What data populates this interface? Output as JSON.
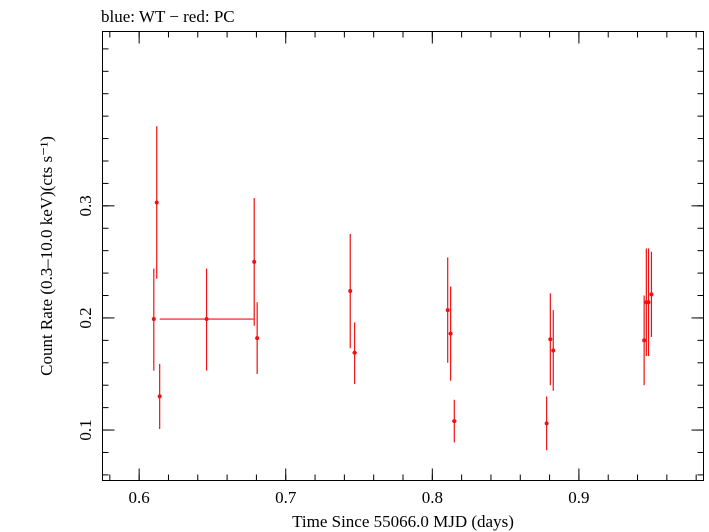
{
  "chart_data": {
    "type": "scatter",
    "title": "blue: WT − red: PC",
    "xlabel": "Time Since 55066.0 MJD (days)",
    "ylabel": "Count Rate (0.3–10.0 keV)(cts s⁻¹)",
    "xlim": [
      0.575,
      0.985
    ],
    "ylim": [
      0.055,
      0.4555
    ],
    "x_ticks": [
      {
        "value": 0.6,
        "label": "0.6"
      },
      {
        "value": 0.7,
        "label": "0.7"
      },
      {
        "value": 0.8,
        "label": "0.8"
      },
      {
        "value": 0.9,
        "label": "0.9"
      }
    ],
    "y_ticks": [
      {
        "value": 0.1,
        "label": "0.1"
      },
      {
        "value": 0.2,
        "label": "0.2"
      },
      {
        "value": 0.3,
        "label": "0.3"
      }
    ],
    "x_minor_step": 0.02,
    "y_minor_step": 0.02,
    "series": [
      {
        "color": "#ee1111",
        "points": [
          {
            "x": 0.61,
            "y": 0.199,
            "xerr": 0.0,
            "ylo": 0.153,
            "yhi": 0.244
          },
          {
            "x": 0.612,
            "y": 0.303,
            "xerr": 0.0,
            "ylo": 0.235,
            "yhi": 0.371
          },
          {
            "x": 0.614,
            "y": 0.13,
            "xerr": 0.001,
            "ylo": 0.101,
            "yhi": 0.159
          },
          {
            "x": 0.646,
            "y": 0.199,
            "xerr": 0.032,
            "ylo": 0.153,
            "yhi": 0.244
          },
          {
            "x": 0.6785,
            "y": 0.25,
            "xerr": 0.0,
            "ylo": 0.193,
            "yhi": 0.307
          },
          {
            "x": 0.6805,
            "y": 0.182,
            "xerr": 0.001,
            "ylo": 0.15,
            "yhi": 0.214
          },
          {
            "x": 0.744,
            "y": 0.224,
            "xerr": 0.0,
            "ylo": 0.173,
            "yhi": 0.275
          },
          {
            "x": 0.747,
            "y": 0.169,
            "xerr": 0.0015,
            "ylo": 0.141,
            "yhi": 0.196
          },
          {
            "x": 0.8105,
            "y": 0.207,
            "xerr": 0.0,
            "ylo": 0.16,
            "yhi": 0.254
          },
          {
            "x": 0.8125,
            "y": 0.186,
            "xerr": 0.0,
            "ylo": 0.144,
            "yhi": 0.228
          },
          {
            "x": 0.815,
            "y": 0.108,
            "xerr": 0.0015,
            "ylo": 0.089,
            "yhi": 0.127
          },
          {
            "x": 0.878,
            "y": 0.106,
            "xerr": 0.0,
            "ylo": 0.082,
            "yhi": 0.13
          },
          {
            "x": 0.8805,
            "y": 0.181,
            "xerr": 0.0,
            "ylo": 0.14,
            "yhi": 0.222
          },
          {
            "x": 0.8825,
            "y": 0.171,
            "xerr": 0.0,
            "ylo": 0.135,
            "yhi": 0.207
          },
          {
            "x": 0.9445,
            "y": 0.18,
            "xerr": 0.0,
            "ylo": 0.14,
            "yhi": 0.22
          },
          {
            "x": 0.946,
            "y": 0.214,
            "xerr": 0.0,
            "ylo": 0.166,
            "yhi": 0.262
          },
          {
            "x": 0.9475,
            "y": 0.214,
            "xerr": 0.0,
            "ylo": 0.166,
            "yhi": 0.262
          },
          {
            "x": 0.9495,
            "y": 0.221,
            "xerr": 0.001,
            "ylo": 0.183,
            "yhi": 0.259
          }
        ]
      }
    ]
  }
}
